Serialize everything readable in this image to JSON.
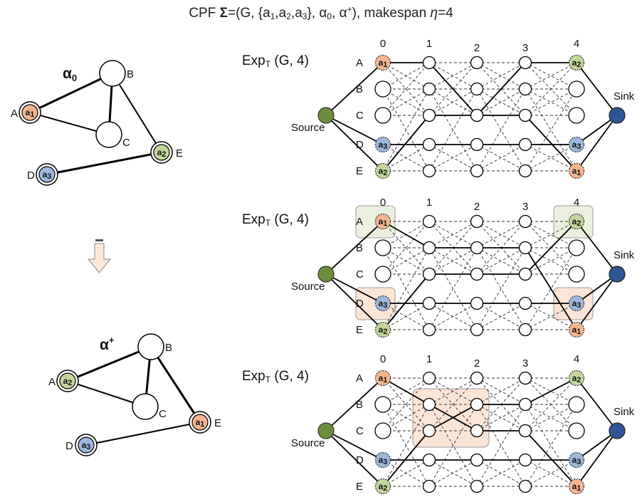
{
  "title": {
    "prefix": "CPF ",
    "sigma": "Σ",
    "eq1": "=(G, {a",
    "s1": "1",
    "c1": ",a",
    "s2": "2",
    "c2": ",a",
    "s3": "3",
    "mid": "}, α",
    "s0": "0",
    "tail": ", α",
    "plus": "+",
    "mk": "),  makespan ",
    "eta": "η",
    "eq4": "=4"
  },
  "graph": {
    "nodes": [
      "A",
      "B",
      "C",
      "D",
      "E"
    ],
    "start_label": "α",
    "start_sub": "0",
    "goal_label": "α",
    "goal_sup": "+"
  },
  "agents": [
    {
      "id": "a1",
      "letter": "a",
      "sub": "1",
      "color": "#f6b58f",
      "start": "A",
      "goal": "E"
    },
    {
      "id": "a2",
      "letter": "a",
      "sub": "2",
      "color": "#c3d69b",
      "start": "E",
      "goal": "A"
    },
    {
      "id": "a3",
      "letter": "a",
      "sub": "3",
      "color": "#9db8dc",
      "start": "D",
      "goal": "D"
    }
  ],
  "expanded": {
    "label_main": "Exp",
    "label_sub": "T",
    "label_args": "(G, 4)",
    "time_steps": [
      "0",
      "1",
      "2",
      "3",
      "4"
    ],
    "rows": [
      "A",
      "B",
      "C",
      "D",
      "E"
    ],
    "source": "Source",
    "sink": "Sink"
  },
  "colors": {
    "source": "#6a8e3a",
    "sink": "#2f5597",
    "green_highlight": "#ebf1de",
    "orange_highlight": "#fbe5d6"
  }
}
